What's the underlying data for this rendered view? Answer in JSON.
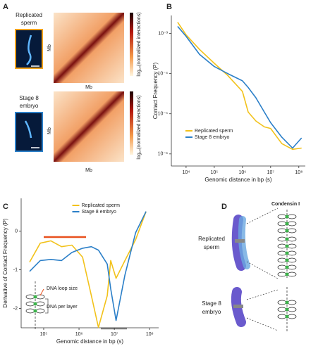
{
  "panel_labels": [
    "A",
    "B",
    "C",
    "D"
  ],
  "heatmaps": [
    {
      "sample": [
        "Replicated",
        "sperm"
      ],
      "axis_label": "Mb",
      "colorbar_label": "log₁₀(normalized interactions)"
    },
    {
      "sample": [
        "Stage 8",
        "embryo"
      ],
      "axis_label": "Mb",
      "colorbar_label": "log₁₀(normalized interactions)"
    }
  ],
  "chart_data": [
    {
      "type": "line",
      "xlabel": "Genomic distance in bp (s)",
      "ylabel": "Contact Frequency (P)",
      "log_x": true,
      "log_y": true,
      "legend": "bottom-left",
      "x": [
        5000,
        10000,
        30000,
        100000,
        300000,
        1000000,
        1600000,
        3000000,
        6000000,
        10000000,
        25000000,
        60000000,
        125000000
      ],
      "series": [
        {
          "name": "Replicated sperm",
          "color": "#f2c21b",
          "values": [
            0.0019,
            0.00092,
            0.0004,
            0.00018,
            9e-05,
            3.6e-05,
            1.1e-05,
            6.6e-06,
            4.7e-06,
            4.3e-06,
            1.8e-06,
            1.3e-06,
            1.4e-06
          ]
        },
        {
          "name": "Stage 8 embryo",
          "color": "#2b7fc8",
          "values": [
            0.0015,
            0.00085,
            0.0003,
            0.00015,
            0.0001,
            6.6e-05,
            4.5e-05,
            2.5e-05,
            1.1e-05,
            6e-06,
            2.6e-06,
            1.4e-06,
            2.5e-06
          ]
        }
      ],
      "xlim": [
        3000,
        170000000
      ],
      "ylim": [
        5e-07,
        0.0028
      ],
      "xticks": [
        {
          "value": 10000,
          "label": "10⁴"
        },
        {
          "value": 100000,
          "label": "10⁵"
        },
        {
          "value": 1000000,
          "label": "10⁶"
        },
        {
          "value": 10000000,
          "label": "10⁷"
        },
        {
          "value": 100000000,
          "label": "10⁸"
        }
      ],
      "yticks": [
        {
          "value": 0.001,
          "label": "10⁻³"
        },
        {
          "value": 0.0001,
          "label": "10⁻⁴"
        },
        {
          "value": 1e-05,
          "label": "10⁻⁵"
        },
        {
          "value": 1e-06,
          "label": "10⁻⁶"
        }
      ]
    },
    {
      "type": "line",
      "xlabel": "Genomic distance in bp (s)",
      "ylabel": "Derivative of Contact Frequency (P)",
      "log_x": true,
      "log_y": false,
      "legend": "top-center",
      "x": [
        40000,
        80000,
        160000,
        320000,
        630000,
        1260000,
        2240000,
        3550000,
        6300000,
        7900000,
        11200000,
        20000000,
        40000000,
        79000000
      ],
      "series": [
        {
          "name": "Replicated sperm",
          "color": "#f2c21b",
          "values": [
            -0.8,
            -0.31,
            -0.25,
            -0.4,
            -0.36,
            -0.67,
            -1.67,
            -2.49,
            -1.67,
            -0.76,
            -1.22,
            -0.76,
            -0.22,
            0.51
          ]
        },
        {
          "name": "Stage 8 embryo",
          "color": "#2b7fc8",
          "values": [
            -1.04,
            -0.76,
            -0.73,
            -0.76,
            -0.55,
            -0.44,
            -0.4,
            -0.49,
            -0.85,
            -1.49,
            -2.31,
            -1.13,
            -0.04,
            0.51
          ]
        }
      ],
      "xlim": [
        23000,
        180000000
      ],
      "ylim": [
        -2.5,
        0.85
      ],
      "xticks": [
        {
          "value": 100000,
          "label": "10⁵"
        },
        {
          "value": 1000000,
          "label": "10⁶"
        },
        {
          "value": 10000000,
          "label": "10⁷"
        },
        {
          "value": 100000000,
          "label": "10⁸"
        }
      ],
      "yticks": [
        0,
        -1,
        -2
      ],
      "annotations": [
        "DNA loop size",
        "DNA per layer"
      ]
    }
  ],
  "diagram": {
    "protein": "Condensin I",
    "samples": [
      [
        "Replicated",
        "sperm"
      ],
      [
        "Stage 8",
        "embryo"
      ]
    ]
  }
}
